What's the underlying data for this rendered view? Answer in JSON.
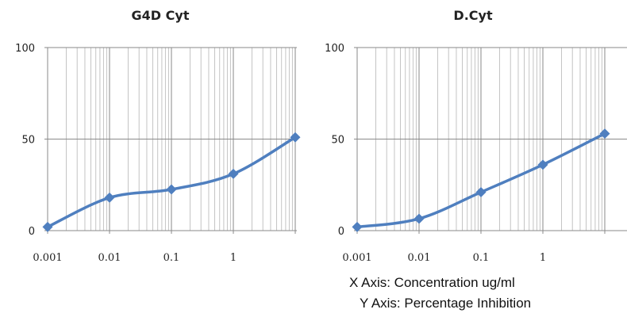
{
  "chart_data": [
    {
      "type": "line",
      "title": "G4D Cyt",
      "x": [
        0.001,
        0.01,
        0.1,
        1,
        10
      ],
      "y": [
        2,
        18,
        22.5,
        31,
        51
      ],
      "xscale": "log",
      "xlim": [
        0.001,
        10
      ],
      "ylim": [
        0,
        100
      ],
      "xticks": [
        "0.001",
        "0.01",
        "0.1",
        "1"
      ],
      "yticks": [
        "0",
        "50",
        "100"
      ],
      "grid": true,
      "line_color": "#4f7fbf"
    },
    {
      "type": "line",
      "title": "D.Cyt",
      "x": [
        0.001,
        0.01,
        0.1,
        1,
        10
      ],
      "y": [
        2,
        6.5,
        21,
        36,
        53
      ],
      "xscale": "log",
      "xlim": [
        0.001,
        10
      ],
      "ylim": [
        0,
        100
      ],
      "xticks": [
        "0.001",
        "0.01",
        "0.1",
        "1"
      ],
      "yticks": [
        "0",
        "50",
        "100"
      ],
      "grid": true,
      "line_color": "#4f7fbf"
    }
  ],
  "notes": {
    "x_axis": "X Axis: Concentration ug/ml",
    "y_axis": "Y Axis: Percentage Inhibition"
  }
}
